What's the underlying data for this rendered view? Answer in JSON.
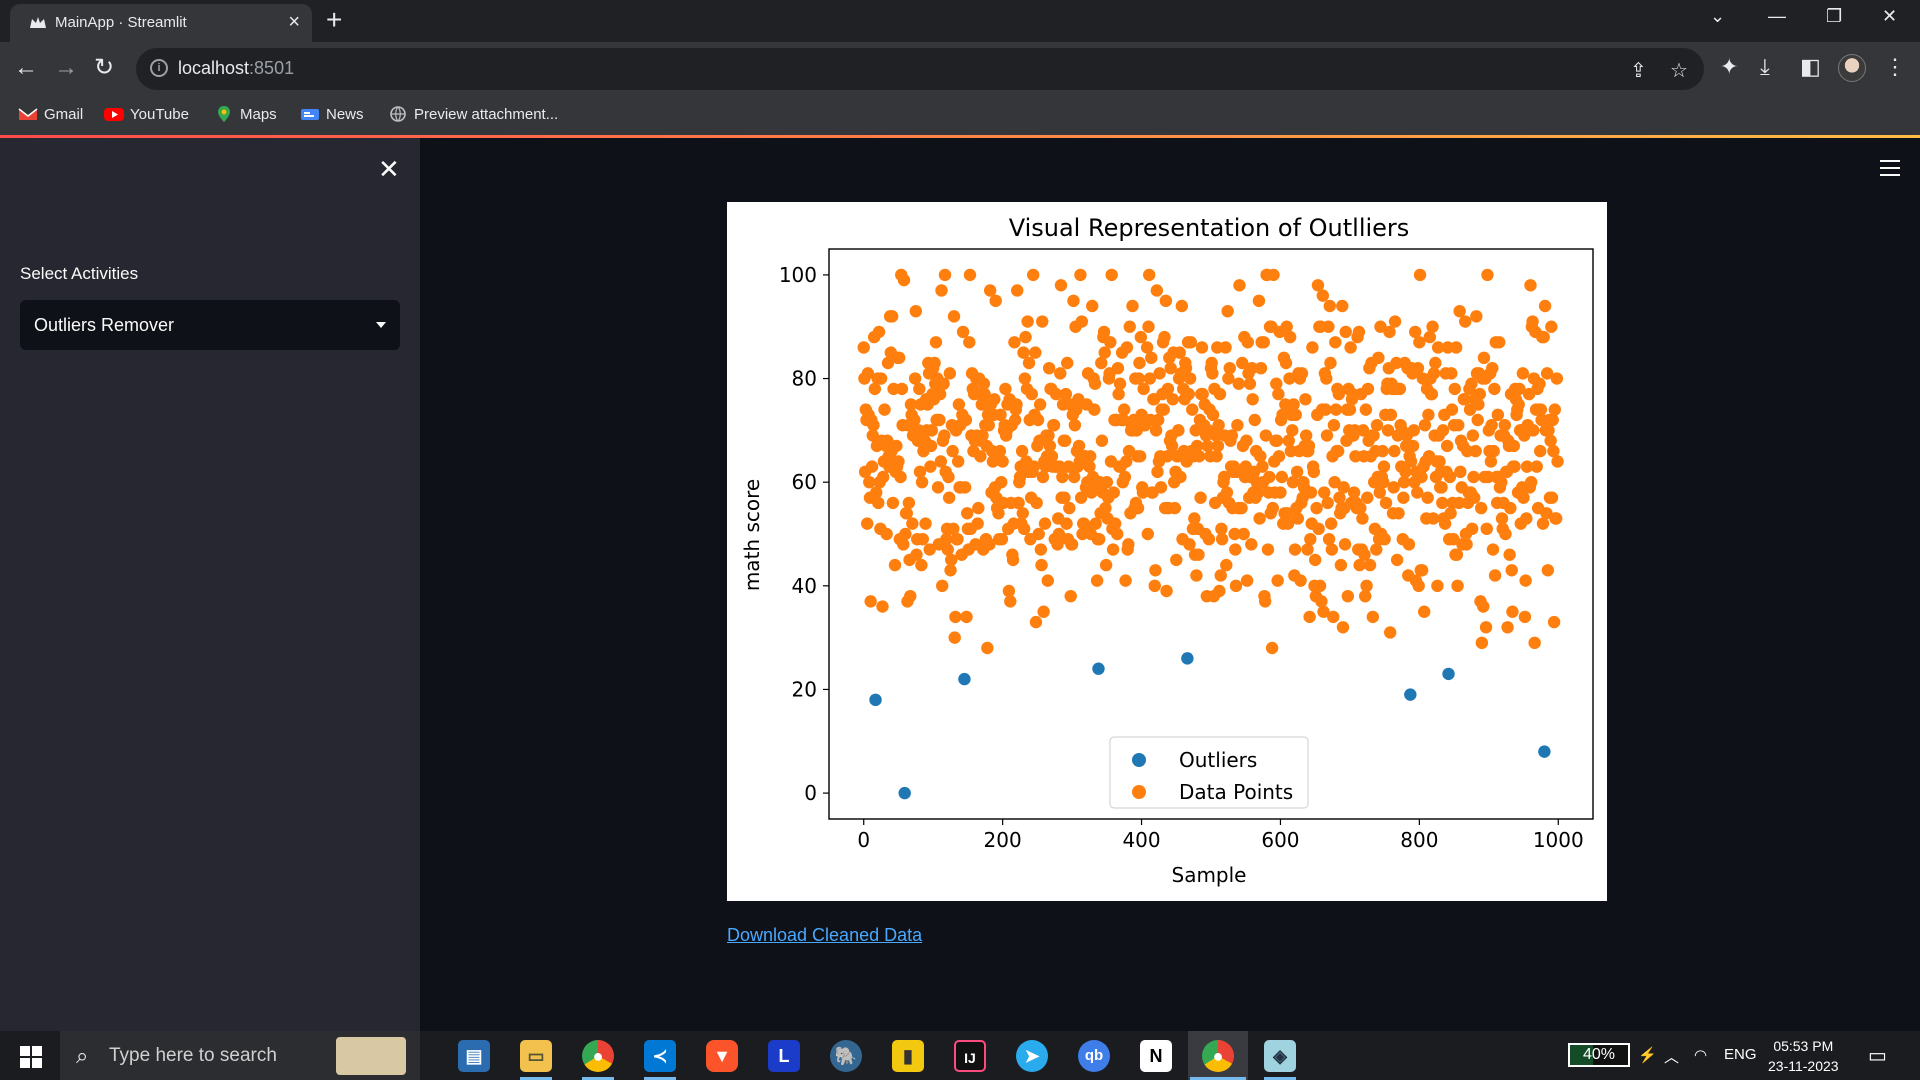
{
  "browser": {
    "tab_title": "MainApp · Streamlit",
    "url_host": "localhost",
    "url_port": ":8501",
    "bookmarks": [
      "Gmail",
      "YouTube",
      "Maps",
      "News",
      "Preview attachment..."
    ]
  },
  "sidebar": {
    "select_label": "Select Activities",
    "select_value": "Outliers Remover"
  },
  "main": {
    "download_link": "Download Cleaned Data"
  },
  "chart_data": {
    "type": "scatter",
    "title": "Visual Representation of Outlliers",
    "xlabel": "Sample",
    "ylabel": "math score",
    "xlim": [
      -50,
      1050
    ],
    "ylim": [
      -5,
      105
    ],
    "xticks": [
      0,
      200,
      400,
      600,
      800,
      1000
    ],
    "yticks": [
      0,
      20,
      40,
      60,
      80,
      100
    ],
    "legend_position": "lower center",
    "series": [
      {
        "name": "Outliers",
        "color": "#1f77b4",
        "x": [
          17,
          59,
          145,
          338,
          466,
          787,
          842,
          980
        ],
        "y": [
          18,
          0,
          22,
          24,
          26,
          19,
          23,
          8
        ]
      },
      {
        "name": "Data Points",
        "color": "#ff7f0e",
        "count": 992,
        "y_range": [
          27,
          100
        ]
      }
    ]
  },
  "taskbar": {
    "search_placeholder": "Type here to search",
    "battery": "40%",
    "language": "ENG",
    "time": "05:53 PM",
    "date": "23-11-2023"
  }
}
